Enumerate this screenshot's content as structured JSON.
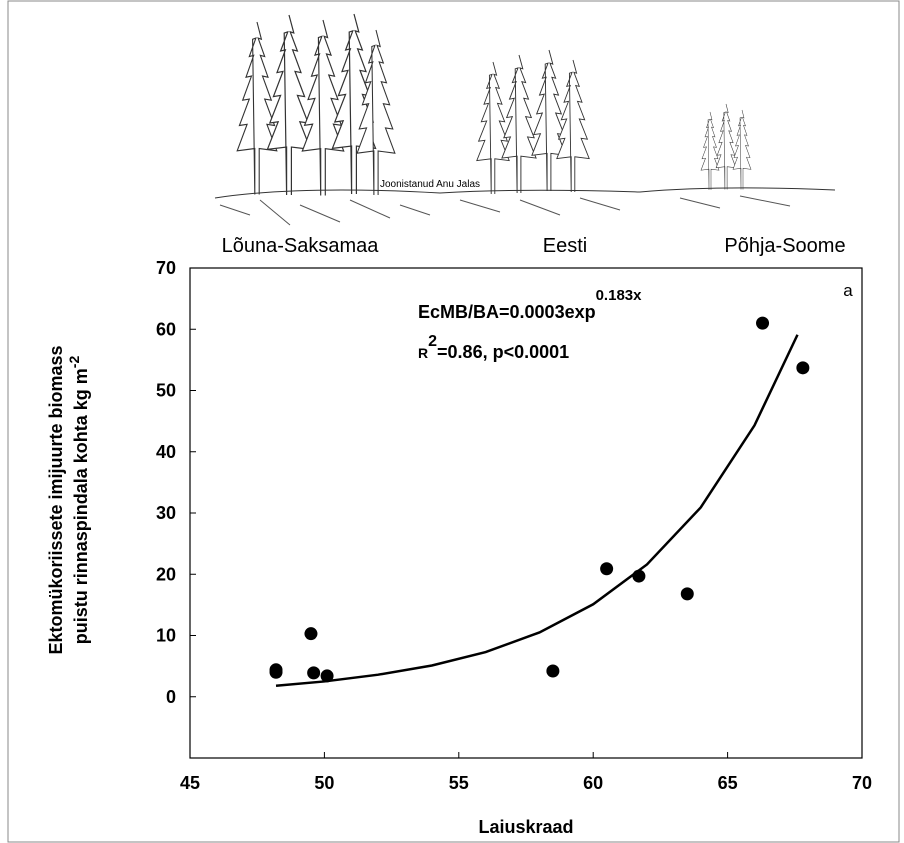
{
  "chart_data": {
    "type": "scatter",
    "illustration_labels": [
      "Lõuna-Saksamaa",
      "Eesti",
      "Põhja-Soome"
    ],
    "illustration_credit": "Joonistanud Anu Jalas",
    "equation": "EcMB/BA=0.0003exp",
    "equation_exponent": "0.183x",
    "r_label": "R",
    "r_exponent": "2",
    "stats": "=0.86, p<0.0001",
    "panel_label": "a",
    "ylabel_lines": [
      "Ektomükoriissete imijuurte biomass",
      "puistu rinnaspindala kohta kg m"
    ],
    "ylabel_exponent": "-2",
    "xlabel": "Laiuskraad",
    "xlim": [
      45,
      70
    ],
    "xticks": [
      45,
      50,
      55,
      60,
      65,
      70
    ],
    "ylim": [
      -10,
      70
    ],
    "yticks": [
      0,
      10,
      20,
      30,
      40,
      50,
      60,
      70
    ],
    "points": {
      "color": "#000000",
      "x": [
        48.2,
        48.2,
        49.5,
        49.6,
        50.1,
        58.5,
        60.5,
        61.7,
        63.5,
        66.3,
        67.8
      ],
      "values": [
        4.4,
        4.0,
        10.3,
        3.9,
        3.4,
        4.2,
        20.9,
        19.7,
        16.8,
        61.0,
        53.7
      ]
    },
    "fit": {
      "color": "#000000",
      "x": [
        48.2,
        50,
        52,
        54,
        56,
        58,
        60,
        62,
        64,
        66,
        67.6
      ],
      "values": [
        1.8,
        2.5,
        3.6,
        5.1,
        7.3,
        10.5,
        15.1,
        21.6,
        30.9,
        44.3,
        59.1
      ]
    }
  }
}
